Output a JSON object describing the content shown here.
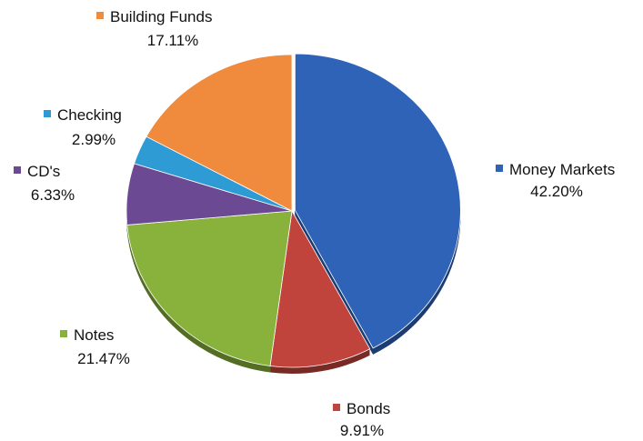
{
  "chart_data": {
    "type": "pie",
    "slices": [
      {
        "label": "Money Markets",
        "value_text": "42.20%",
        "value": 42.2,
        "color": "#2e63b8"
      },
      {
        "label": "Bonds",
        "value_text": "9.91%",
        "value": 9.91,
        "color": "#c1443c"
      },
      {
        "label": "Notes",
        "value_text": "21.47%",
        "value": 21.47,
        "color": "#88b23c"
      },
      {
        "label": "CD's",
        "value_text": "6.33%",
        "value": 6.33,
        "color": "#6b4a93"
      },
      {
        "label": "Checking",
        "value_text": "2.99%",
        "value": 2.99,
        "color": "#2f9bd4"
      },
      {
        "label": "Building Funds",
        "value_text": "17.11%",
        "value": 17.11,
        "color": "#f08a3c"
      }
    ],
    "start_angle_deg": 0,
    "direction": "clockwise",
    "legend_placement": "data-labels-outside"
  }
}
